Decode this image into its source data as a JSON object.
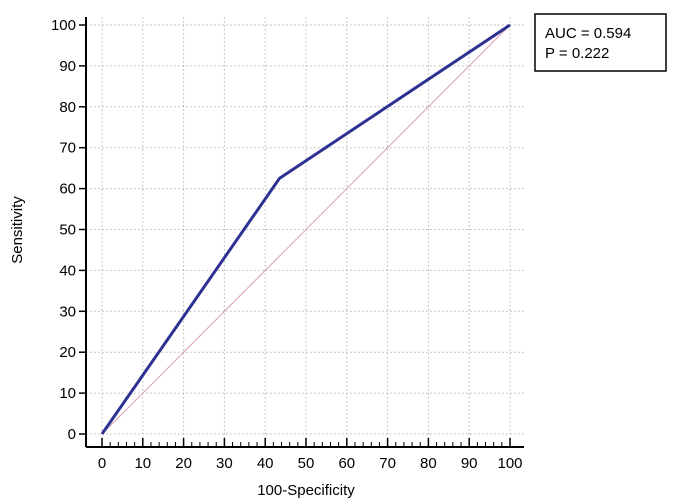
{
  "chart_data": {
    "type": "line",
    "title": "",
    "xlabel": "100-Specificity",
    "ylabel": "Sensitivity",
    "xlim": [
      0,
      100
    ],
    "ylim": [
      0,
      100
    ],
    "xticks": [
      0,
      10,
      20,
      30,
      40,
      50,
      60,
      70,
      80,
      90,
      100
    ],
    "yticks": [
      0,
      10,
      20,
      30,
      40,
      50,
      60,
      70,
      80,
      90,
      100
    ],
    "grid": true,
    "series": [
      {
        "x": [
          0,
          43.5,
          100
        ],
        "y": [
          0,
          62.5,
          100
        ],
        "color": "#2e3192"
      },
      {
        "x": [
          0,
          100
        ],
        "y": [
          0,
          100
        ],
        "color": "#d9a0b4"
      }
    ],
    "legend": {
      "placement": "top-right",
      "lines": [
        "AUC = 0.594",
        "P = 0.222"
      ]
    }
  }
}
